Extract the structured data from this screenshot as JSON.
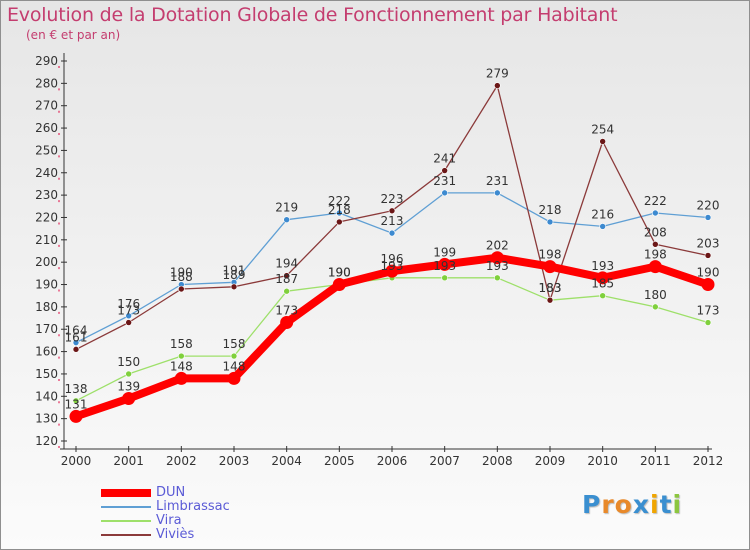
{
  "title": "Evolution de la Dotation Globale de Fonctionnement par Habitant",
  "subtitle": "(en € et par an)",
  "logo": {
    "text": "Proxiti",
    "letter_colors": [
      "#3a8fd0",
      "#e8892a",
      "#e8892a",
      "#3a8fd0",
      "#f0a500",
      "#3a8fd0",
      "#8cc63f"
    ]
  },
  "colors": {
    "axis": "#333333",
    "grid": "#d9d9d9",
    "tick_accent": "#e0003c"
  },
  "chart_data": {
    "type": "line",
    "title": "Evolution de la Dotation Globale de Fonctionnement par Habitant",
    "subtitle": "(en € et par an)",
    "xlabel": "",
    "ylabel": "",
    "ylim": [
      120,
      290
    ],
    "ytick_step": 10,
    "grid": false,
    "legend_position": "bottom-left",
    "categories": [
      "2000",
      "2001",
      "2002",
      "2003",
      "2004",
      "2005",
      "2006",
      "2007",
      "2008",
      "2009",
      "2010",
      "2011",
      "2012"
    ],
    "series": [
      {
        "name": "DUN",
        "color": "#ff0000",
        "stroke": "#ff0000",
        "fill": "#ff0000",
        "emphasis": true,
        "values": [
          131,
          139,
          148,
          148,
          173,
          190,
          196,
          199,
          202,
          198,
          193,
          198,
          190
        ]
      },
      {
        "name": "Limbrassac",
        "color": "#6fa8d8",
        "stroke": "#5f9fd4",
        "fill": "#3d8ad0",
        "emphasis": false,
        "values": [
          164,
          176,
          190,
          191,
          219,
          222,
          213,
          231,
          231,
          218,
          216,
          222,
          220
        ]
      },
      {
        "name": "Vira",
        "color": "#9ee06a",
        "stroke": "#9ee06a",
        "fill": "#7fd03c",
        "emphasis": false,
        "values": [
          138,
          150,
          158,
          158,
          187,
          190,
          193,
          193,
          193,
          183,
          185,
          180,
          173
        ]
      },
      {
        "name": "Viviès",
        "color": "#8b3a3a",
        "stroke": "#8b3a3a",
        "fill": "#6b1616",
        "emphasis": false,
        "values": [
          161,
          173,
          188,
          189,
          194,
          218,
          223,
          241,
          279,
          183,
          254,
          208,
          203
        ]
      }
    ]
  }
}
